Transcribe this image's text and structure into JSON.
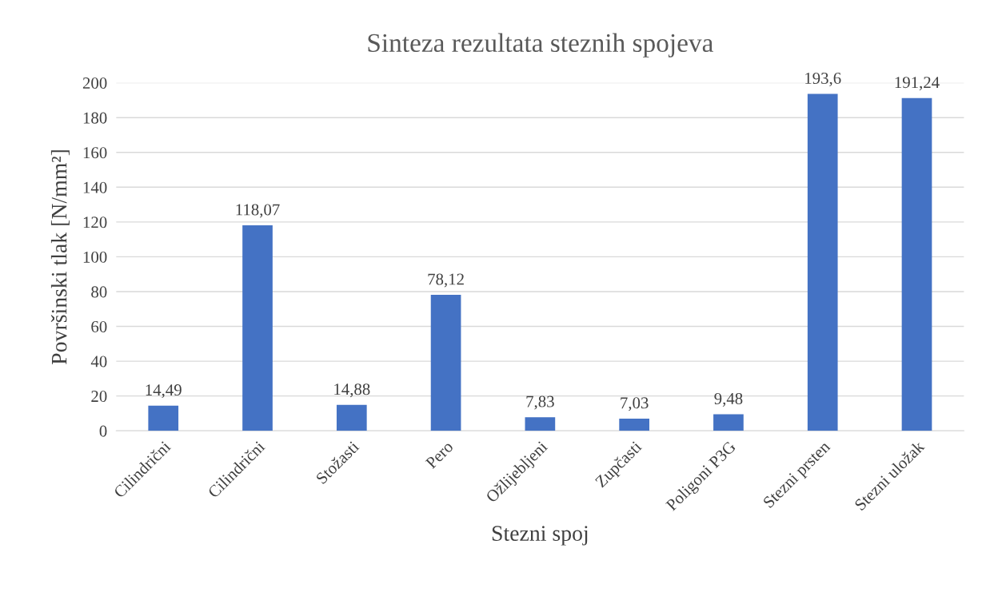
{
  "chart_data": {
    "type": "bar",
    "title": "Sinteza rezultata steznih spojeva",
    "xlabel": "Stezni spoj",
    "ylabel": "Površinski tlak [N/mm²]",
    "categories": [
      "Cilindrični",
      "Cilindrični",
      "Stožasti",
      "Pero",
      "Ožlijebljeni",
      "Zupčasti",
      "Poligoni P3G",
      "Stezni prsten",
      "Stezni uložak"
    ],
    "values": [
      14.49,
      118.07,
      14.88,
      78.12,
      7.83,
      7.03,
      9.48,
      193.6,
      191.24
    ],
    "value_labels": [
      "14,49",
      "118,07",
      "14,88",
      "78,12",
      "7,83",
      "7,03",
      "9,48",
      "193,6",
      "191,24"
    ],
    "color": "#4472c4",
    "ylim": [
      0,
      200
    ],
    "yticks": [
      0,
      20,
      40,
      60,
      80,
      100,
      120,
      140,
      160,
      180,
      200
    ],
    "grid": "y",
    "legend": false
  }
}
